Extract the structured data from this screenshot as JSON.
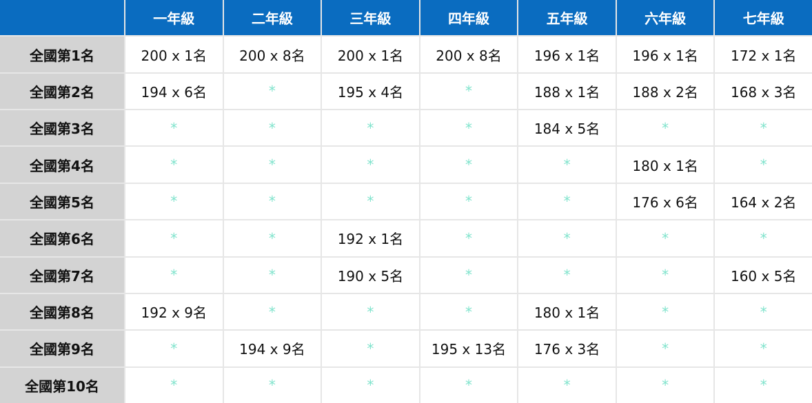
{
  "table": {
    "header": [
      "一年級",
      "二年級",
      "三年級",
      "四年級",
      "五年級",
      "六年級",
      "七年級"
    ],
    "rows": [
      {
        "label": "全國第1名",
        "cells": [
          "200 x 1名",
          "200 x 8名",
          "200 x 1名",
          "200 x 8名",
          "196 x 1名",
          "196 x 1名",
          "172 x 1名"
        ]
      },
      {
        "label": "全國第2名",
        "cells": [
          "194 x 6名",
          "*",
          "195 x 4名",
          "*",
          "188 x 1名",
          "188 x 2名",
          "168 x 3名"
        ]
      },
      {
        "label": "全國第3名",
        "cells": [
          "*",
          "*",
          "*",
          "*",
          "184 x 5名",
          "*",
          "*"
        ]
      },
      {
        "label": "全國第4名",
        "cells": [
          "*",
          "*",
          "*",
          "*",
          "*",
          "180 x 1名",
          "*"
        ]
      },
      {
        "label": "全國第5名",
        "cells": [
          "*",
          "*",
          "*",
          "*",
          "*",
          "176 x 6名",
          "164 x 2名"
        ]
      },
      {
        "label": "全國第6名",
        "cells": [
          "*",
          "*",
          "192 x 1名",
          "*",
          "*",
          "*",
          "*"
        ]
      },
      {
        "label": "全國第7名",
        "cells": [
          "*",
          "*",
          "190 x 5名",
          "*",
          "*",
          "*",
          "160 x 5名"
        ]
      },
      {
        "label": "全國第8名",
        "cells": [
          "192 x 9名",
          "*",
          "*",
          "*",
          "180 x 1名",
          "*",
          "*"
        ]
      },
      {
        "label": "全國第9名",
        "cells": [
          "*",
          "194 x 9名",
          "*",
          "195 x 13名",
          "176 x 3名",
          "*",
          "*"
        ]
      },
      {
        "label": "全國第10名",
        "cells": [
          "*",
          "*",
          "*",
          "*",
          "*",
          "*",
          "*"
        ]
      }
    ]
  }
}
